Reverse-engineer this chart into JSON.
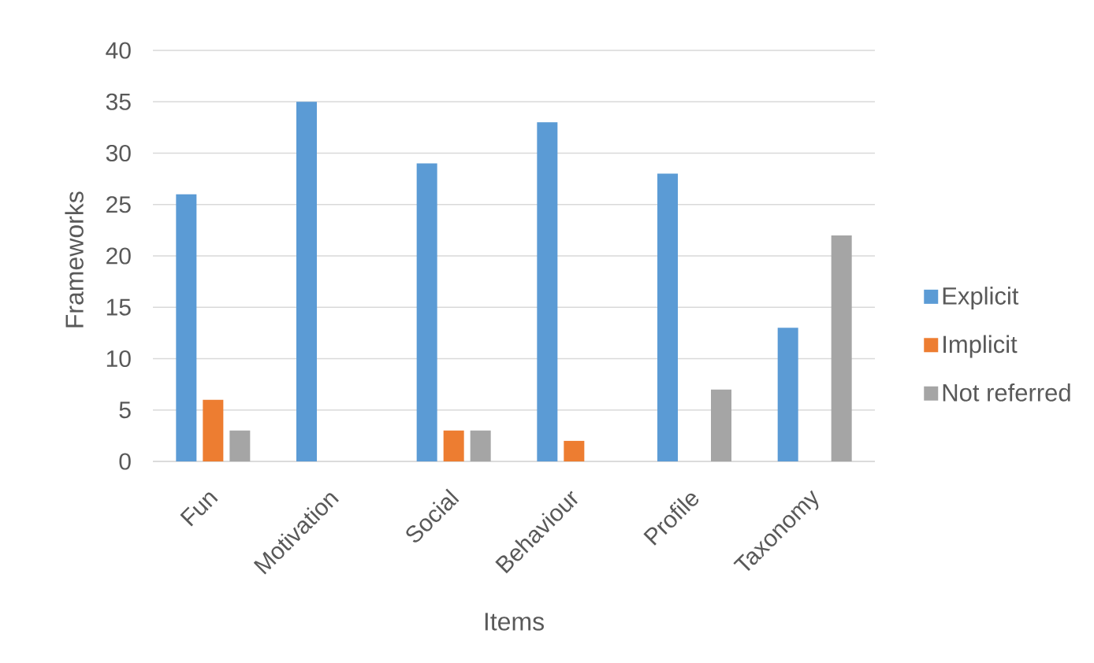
{
  "chart_data": {
    "type": "bar",
    "xlabel": "Items",
    "ylabel": "Frameworks",
    "categories": [
      "Fun",
      "Motivation",
      "Social",
      "Behaviour",
      "Profile",
      "Taxonomy"
    ],
    "series": [
      {
        "name": "Explicit",
        "color": "#5b9bd5",
        "values": [
          26,
          35,
          29,
          33,
          28,
          13
        ]
      },
      {
        "name": "Implicit",
        "color": "#ed7d31",
        "values": [
          6,
          null,
          3,
          2,
          null,
          null
        ]
      },
      {
        "name": "Not referred",
        "color": "#a5a5a5",
        "values": [
          3,
          null,
          3,
          null,
          7,
          22
        ]
      }
    ],
    "ylim": [
      0,
      40
    ],
    "yticks": [
      0,
      5,
      10,
      15,
      20,
      25,
      30,
      35,
      40
    ],
    "grid": "y",
    "legend": "right"
  }
}
